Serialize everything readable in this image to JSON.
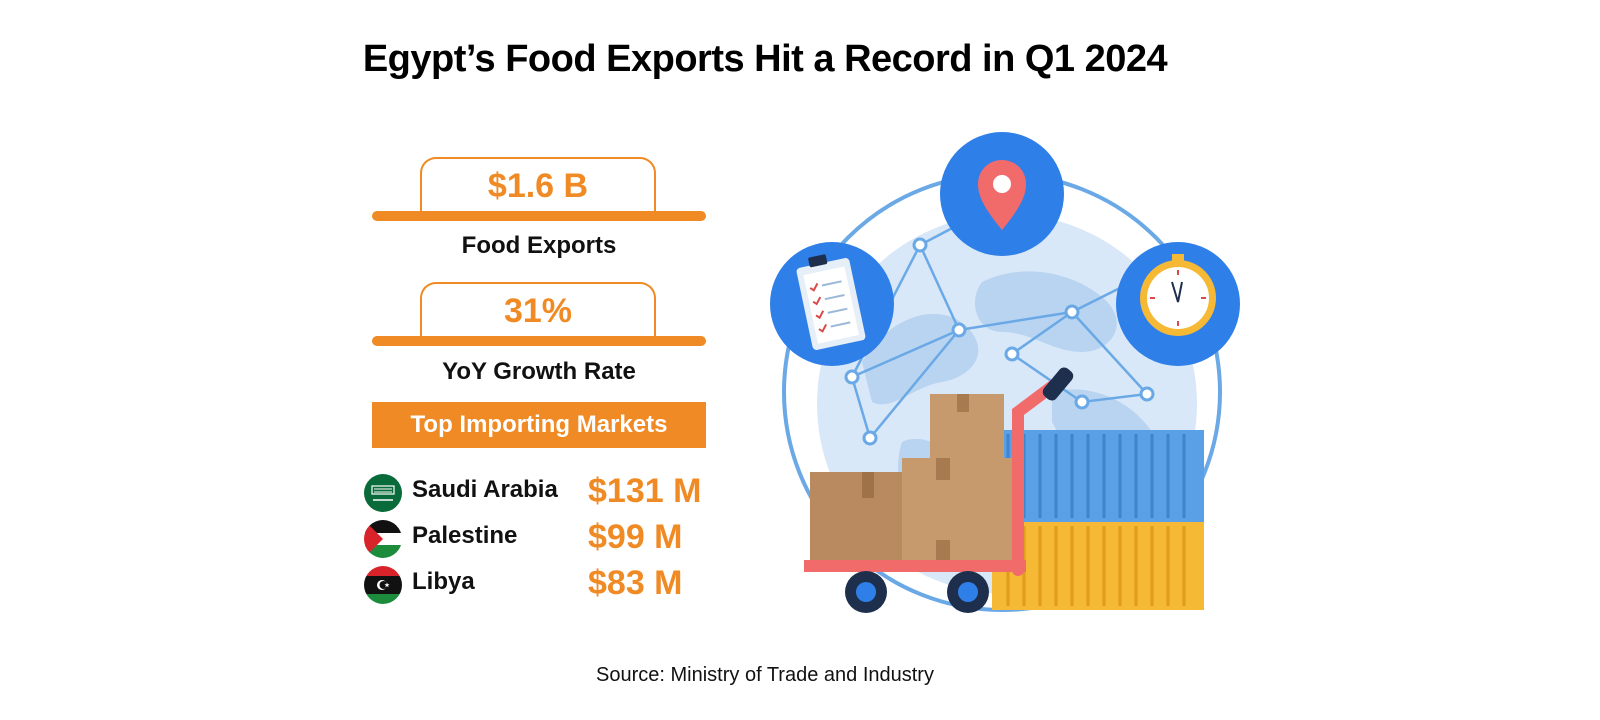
{
  "title": "Egypt’s Food Exports Hit a Record in Q1 2024",
  "stats": [
    {
      "value": "$1.6 B",
      "label": "Food Exports"
    },
    {
      "value": "31%",
      "label": "YoY Growth Rate"
    }
  ],
  "markets": {
    "heading": "Top Importing Markets",
    "rows": [
      {
        "country": "Saudi Arabia",
        "amount": "$131 M",
        "flag_icon": "saudi-arabia-flag-icon"
      },
      {
        "country": "Palestine",
        "amount": "$99 M",
        "flag_icon": "palestine-flag-icon"
      },
      {
        "country": "Libya",
        "amount": "$83 M",
        "flag_icon": "libya-flag-icon"
      }
    ]
  },
  "illustration": {
    "icons": [
      "globe-icon",
      "location-pin-icon",
      "clipboard-checklist-icon",
      "stopwatch-icon",
      "cardboard-boxes-icon",
      "hand-truck-icon",
      "shipping-container-icon"
    ]
  },
  "source": "Source: Ministry of Trade and Industry",
  "colors": {
    "accent": "#f08a24",
    "blue": "#2f7fe8",
    "light_blue": "#cfe3f7"
  }
}
